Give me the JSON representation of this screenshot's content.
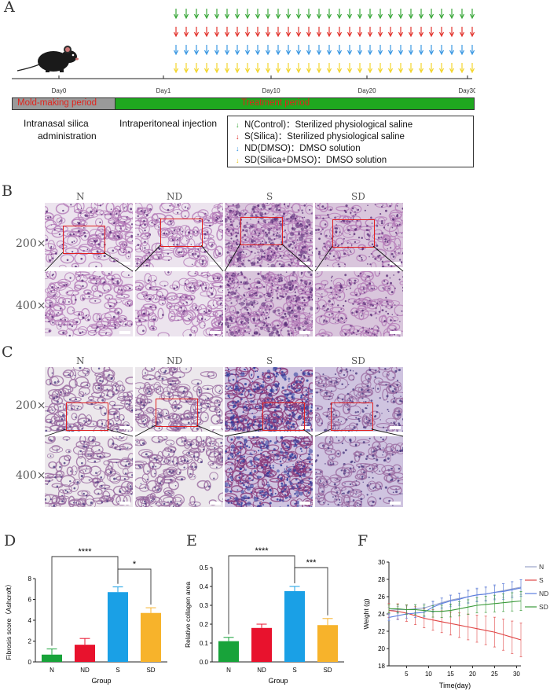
{
  "panel_letters": {
    "a": "A",
    "b": "B",
    "c": "C",
    "d": "D",
    "e": "E",
    "f": "F"
  },
  "timeline": {
    "day_labels": [
      "Day0",
      "Day1",
      "Day10",
      "Day20",
      "Day30"
    ],
    "mold_label": "Mold-making period",
    "treatment_label": "Treatment period",
    "left_caption_1": "Intranasal silica",
    "left_caption_2": "administration",
    "mid_caption": "Intraperitoneal injection",
    "colors": {
      "green": "#2aa02a",
      "red": "#e0231c",
      "blue": "#2b8fe0",
      "yellow": "#f2d21a",
      "mold": "#9a9a9a",
      "treatment": "#1fa81f"
    },
    "legend": [
      {
        "text": "N(Control)：Sterilized physiological saline",
        "color": "#2aa02a"
      },
      {
        "text": "S(Silica)：Sterilized physiological saline",
        "color": "#e0231c"
      },
      {
        "text": "ND(DMSO)：DMSO solution",
        "color": "#2b8fe0"
      },
      {
        "text": "SD(Silica+DMSO)：DMSO solution",
        "color": "#f2d21a"
      }
    ]
  },
  "histology": {
    "columns": [
      "N",
      "ND",
      "S",
      "SD"
    ],
    "row_200": "200×",
    "row_400": "400×"
  },
  "chart_data": [
    {
      "type": "bar",
      "categories": [
        "N",
        "ND",
        "S",
        "SD"
      ],
      "values": [
        0.7,
        1.65,
        6.7,
        4.7
      ],
      "errors": [
        0.55,
        0.6,
        0.5,
        0.5
      ],
      "colors": [
        "#18a33a",
        "#e8122d",
        "#1aa0e6",
        "#f7b32b"
      ],
      "ylabel": "Fibrosis score（Ashcroft）",
      "xlabel": "Group",
      "ylim": [
        0,
        8
      ],
      "yticks": [
        "0",
        "2",
        "4",
        "6",
        "8"
      ],
      "significance": [
        {
          "from": 0,
          "to": 2,
          "label": "****"
        },
        {
          "from": 2,
          "to": 3,
          "label": "*"
        }
      ]
    },
    {
      "type": "bar",
      "categories": [
        "N",
        "ND",
        "S",
        "SD"
      ],
      "values": [
        0.11,
        0.18,
        0.375,
        0.195
      ],
      "errors": [
        0.02,
        0.02,
        0.025,
        0.035
      ],
      "colors": [
        "#18a33a",
        "#e8122d",
        "#1aa0e6",
        "#f7b32b"
      ],
      "ylabel": "Relative collagen area",
      "xlabel": "Group",
      "ylim": [
        0,
        0.5
      ],
      "yticks": [
        "0.0",
        "0.1",
        "0.2",
        "0.3",
        "0.4",
        "0.5"
      ],
      "significance": [
        {
          "from": 0,
          "to": 2,
          "label": "****"
        },
        {
          "from": 2,
          "to": 3,
          "label": "***"
        }
      ]
    },
    {
      "type": "line",
      "xlabel": "Time(day)",
      "ylabel": "Weight (g)",
      "xlim": [
        1,
        31
      ],
      "ylim": [
        18,
        30
      ],
      "xticks": [
        "5",
        "10",
        "15",
        "20",
        "25",
        "30"
      ],
      "yticks": [
        "18",
        "20",
        "22",
        "24",
        "26",
        "28",
        "30"
      ],
      "series": [
        {
          "name": "N",
          "color": "#9aa3c9",
          "values": [
            [
              1,
              24.4
            ],
            [
              3,
              24.5
            ],
            [
              5,
              24.5
            ],
            [
              7,
              24.6
            ],
            [
              9,
              24.7
            ],
            [
              11,
              25.0
            ],
            [
              13,
              25.3
            ],
            [
              15,
              25.6
            ],
            [
              17,
              25.8
            ],
            [
              19,
              26.0
            ],
            [
              21,
              26.2
            ],
            [
              23,
              26.3
            ],
            [
              25,
              26.5
            ],
            [
              27,
              26.7
            ],
            [
              29,
              26.9
            ],
            [
              31,
              27.1
            ]
          ],
          "err": 0.7
        },
        {
          "name": "S",
          "color": "#e04545",
          "values": [
            [
              1,
              24.4
            ],
            [
              3,
              24.3
            ],
            [
              5,
              24.1
            ],
            [
              7,
              23.8
            ],
            [
              9,
              23.5
            ],
            [
              11,
              23.3
            ],
            [
              13,
              23.1
            ],
            [
              15,
              22.9
            ],
            [
              17,
              22.7
            ],
            [
              19,
              22.5
            ],
            [
              21,
              22.3
            ],
            [
              23,
              22.1
            ],
            [
              25,
              21.9
            ],
            [
              27,
              21.6
            ],
            [
              29,
              21.3
            ],
            [
              31,
              21.0
            ]
          ],
          "err": 1.6
        },
        {
          "name": "ND",
          "color": "#5b7fe0",
          "values": [
            [
              1,
              23.6
            ],
            [
              3,
              23.8
            ],
            [
              5,
              24.0
            ],
            [
              7,
              24.1
            ],
            [
              9,
              24.2
            ],
            [
              11,
              24.8
            ],
            [
              13,
              25.2
            ],
            [
              15,
              25.5
            ],
            [
              17,
              25.7
            ],
            [
              19,
              26.0
            ],
            [
              21,
              26.2
            ],
            [
              23,
              26.3
            ],
            [
              25,
              26.5
            ],
            [
              27,
              26.6
            ],
            [
              29,
              26.8
            ],
            [
              31,
              27.0
            ]
          ],
          "err": 0.8
        },
        {
          "name": "SD",
          "color": "#3a9a3a",
          "values": [
            [
              1,
              24.6
            ],
            [
              3,
              24.6
            ],
            [
              5,
              24.5
            ],
            [
              7,
              24.5
            ],
            [
              9,
              24.4
            ],
            [
              11,
              24.3
            ],
            [
              13,
              24.3
            ],
            [
              15,
              24.4
            ],
            [
              17,
              24.6
            ],
            [
              19,
              24.8
            ],
            [
              21,
              25.0
            ],
            [
              23,
              25.1
            ],
            [
              25,
              25.2
            ],
            [
              27,
              25.3
            ],
            [
              29,
              25.4
            ],
            [
              31,
              25.5
            ]
          ],
          "err": 0.9
        }
      ],
      "legend_labels": [
        "N",
        "S",
        "ND",
        "SD"
      ],
      "legend_colors": [
        "#9aa3c9",
        "#e04545",
        "#5b7fe0",
        "#3a9a3a"
      ]
    }
  ]
}
